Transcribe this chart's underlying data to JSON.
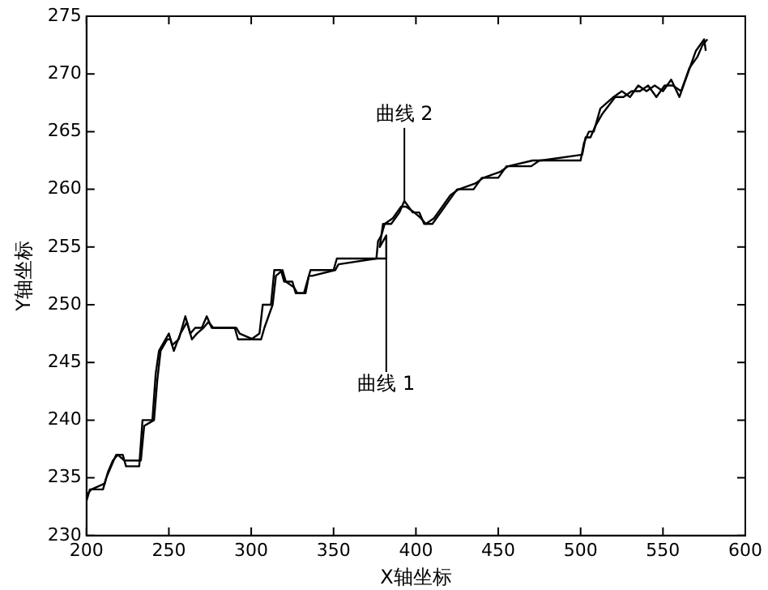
{
  "chart_data": {
    "type": "line",
    "xlabel": "X轴坐标",
    "ylabel": "Y轴坐标",
    "xlim": [
      200,
      600
    ],
    "ylim": [
      230,
      275
    ],
    "xticks": [
      200,
      250,
      300,
      350,
      400,
      450,
      500,
      550,
      600
    ],
    "yticks": [
      230,
      235,
      240,
      245,
      250,
      255,
      260,
      265,
      270,
      275
    ],
    "grid": false,
    "legend": false,
    "marker": "none",
    "line_style": "solid",
    "annotations": [
      {
        "text": "曲线 1",
        "x": 382,
        "y": 254
      },
      {
        "text": "曲线 2",
        "x": 393,
        "y": 259
      }
    ],
    "series": [
      {
        "color": "#000000",
        "x": [
          200,
          202,
          210,
          212,
          215,
          218,
          222,
          224,
          232,
          234,
          240,
          242,
          244,
          248,
          250,
          252,
          256,
          260,
          263,
          266,
          270,
          273,
          276,
          290,
          292,
          300,
          305,
          307,
          312,
          314,
          318,
          320,
          325,
          327,
          332,
          334,
          336,
          350,
          352,
          382,
          382,
          378,
          380,
          385,
          390,
          393,
          398,
          402,
          405,
          410,
          415,
          420,
          425,
          435,
          440,
          450,
          455,
          470,
          475,
          500,
          502,
          505,
          508,
          512,
          520,
          525,
          530,
          535,
          540,
          545,
          550,
          555,
          560,
          565,
          570,
          575,
          576
        ],
        "values": [
          233,
          234,
          234,
          235,
          236,
          237,
          237,
          236,
          236,
          240,
          240,
          244,
          246,
          247,
          247.5,
          246.5,
          247,
          249,
          247.5,
          248,
          248,
          249,
          248,
          248,
          247,
          247,
          247.5,
          250,
          250,
          253,
          253,
          252,
          252,
          251,
          251,
          252,
          253,
          253,
          254,
          254,
          256,
          255,
          257,
          257,
          258,
          259,
          258,
          258,
          257,
          257,
          258,
          259,
          260,
          260,
          261,
          261,
          262,
          262,
          262.5,
          262.5,
          264,
          265,
          265,
          267,
          268,
          268.5,
          268,
          269,
          268.5,
          269,
          268.5,
          269.5,
          268,
          270,
          272,
          273,
          272
        ]
      },
      {
        "color": "#000000",
        "x": [
          200,
          203,
          211,
          213,
          216,
          219,
          223,
          225,
          233,
          235,
          241,
          243,
          245,
          249,
          251,
          253,
          257,
          261,
          264,
          267,
          271,
          274,
          277,
          291,
          293,
          301,
          306,
          308,
          313,
          315,
          319,
          321,
          326,
          328,
          333,
          335,
          337,
          351,
          353,
          376,
          377,
          379,
          381,
          386,
          391,
          394,
          399,
          403,
          406,
          411,
          416,
          421,
          426,
          436,
          441,
          451,
          456,
          471,
          476,
          501,
          503,
          506,
          509,
          513,
          521,
          526,
          531,
          536,
          541,
          546,
          551,
          556,
          561,
          566,
          571,
          574,
          577
        ],
        "values": [
          233.5,
          234,
          234.5,
          235.5,
          236.5,
          237,
          236.5,
          236.5,
          236.5,
          239.5,
          240,
          243.5,
          246,
          247,
          247,
          246,
          247.5,
          248.5,
          247,
          247.5,
          248,
          248.5,
          248,
          248,
          247.5,
          247,
          247,
          248,
          250,
          252.5,
          253,
          252,
          251.5,
          251,
          251,
          252.5,
          252.5,
          253,
          253.5,
          254,
          255.5,
          256,
          257,
          257.5,
          258.5,
          258.5,
          258,
          257.5,
          257,
          257.5,
          258.5,
          259.5,
          260,
          260.5,
          261,
          261.5,
          262,
          262.5,
          262.5,
          263,
          264.5,
          264.5,
          265.5,
          266.5,
          268,
          268,
          268.5,
          268.5,
          269,
          268,
          269,
          269,
          268.5,
          270.5,
          271.5,
          272.5,
          273
        ]
      }
    ]
  }
}
